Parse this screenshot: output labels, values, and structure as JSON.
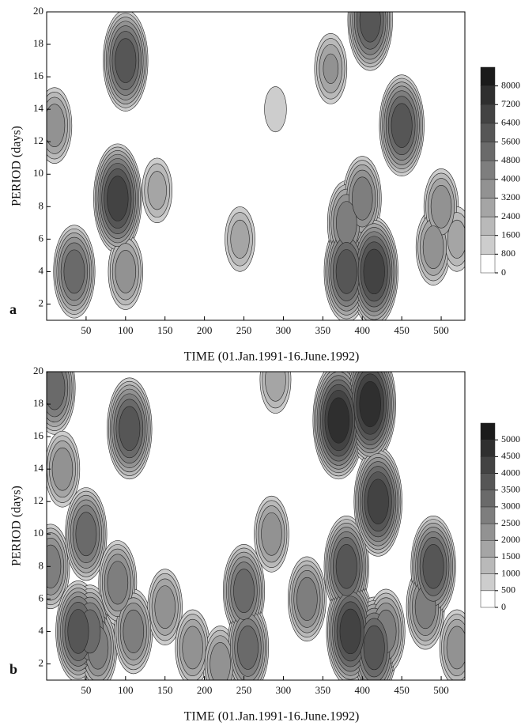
{
  "chart_data": [
    {
      "type": "contour",
      "label": "a",
      "xlabel": "TIME  (01.Jan.1991-16.June.1992)",
      "ylabel": "PERIOD  (days)",
      "xlim": [
        0,
        530
      ],
      "ylim": [
        1,
        20
      ],
      "xticks": [
        50,
        100,
        150,
        200,
        250,
        300,
        350,
        400,
        450,
        500
      ],
      "yticks": [
        2,
        4,
        6,
        8,
        10,
        12,
        14,
        16,
        18,
        20
      ],
      "clim": [
        0,
        8800
      ],
      "cticks": [
        0,
        800,
        1600,
        2400,
        3200,
        4000,
        4800,
        5600,
        6400,
        7200,
        8000
      ],
      "x": [
        10,
        35,
        90,
        100,
        100,
        140,
        245,
        290,
        360,
        380,
        380,
        400,
        415,
        410,
        450,
        490,
        500,
        520
      ],
      "y": [
        13,
        4,
        8.5,
        17,
        4,
        9,
        6,
        14,
        16.5,
        4,
        7,
        8.5,
        4,
        19.5,
        13,
        5.5,
        8,
        6
      ],
      "values": [
        4000,
        5600,
        7200,
        6400,
        4000,
        3000,
        3000,
        1600,
        3500,
        6400,
        4800,
        4800,
        7200,
        6400,
        6400,
        4000,
        4000,
        3000
      ]
    },
    {
      "type": "contour",
      "label": "b",
      "xlabel": "TIME  (01.Jan.1991-16.June.1992)",
      "ylabel": "PERIOD  (days)",
      "xlim": [
        0,
        530
      ],
      "ylim": [
        1,
        20
      ],
      "xticks": [
        50,
        100,
        150,
        200,
        250,
        300,
        350,
        400,
        450,
        500
      ],
      "yticks": [
        2,
        4,
        6,
        8,
        10,
        12,
        14,
        16,
        18,
        20
      ],
      "clim": [
        0,
        5500
      ],
      "cticks": [
        0,
        500,
        1000,
        1500,
        2000,
        2500,
        3000,
        3500,
        4000,
        4500,
        5000
      ],
      "x": [
        5,
        10,
        20,
        40,
        50,
        55,
        65,
        90,
        105,
        110,
        150,
        185,
        220,
        250,
        255,
        285,
        290,
        330,
        370,
        380,
        385,
        410,
        420,
        415,
        430,
        480,
        490,
        520
      ],
      "y": [
        8,
        19,
        14,
        4,
        10,
        4,
        3,
        7,
        16.5,
        4,
        5.5,
        3,
        2,
        6.5,
        3,
        10,
        19.5,
        6,
        17,
        8,
        4,
        18,
        12,
        3,
        4,
        5.5,
        8,
        3
      ],
      "values": [
        3000,
        3500,
        2500,
        4000,
        3500,
        3500,
        3000,
        3000,
        4000,
        3000,
        2500,
        2500,
        2500,
        3500,
        3500,
        2500,
        2000,
        3000,
        5000,
        4000,
        4500,
        5000,
        4500,
        4000,
        3000,
        3000,
        4000,
        2500
      ]
    }
  ]
}
